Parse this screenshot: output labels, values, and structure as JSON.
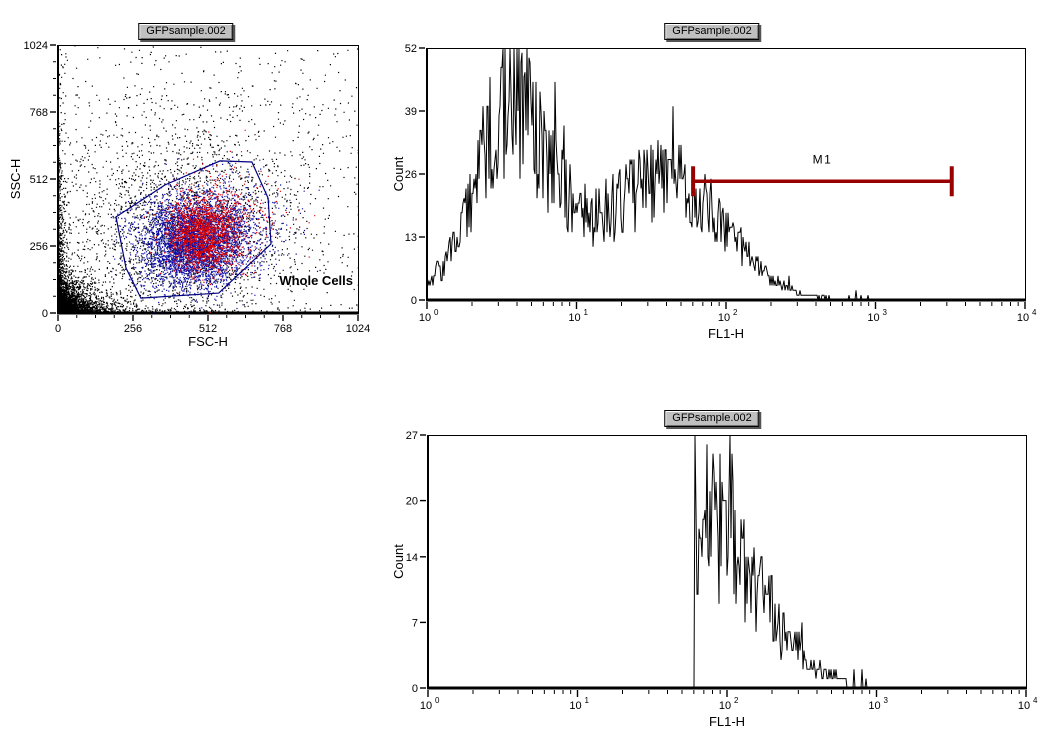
{
  "app": {
    "background": "#FFFFFF"
  },
  "titles": {
    "scatter": "GFPsample.002",
    "hist_total": "GFPsample.002",
    "hist_gated": "GFPsample.002"
  },
  "chart_data": [
    {
      "id": "scatter",
      "type": "scatter",
      "title": "GFPsample.002",
      "xlabel": "FSC-H",
      "ylabel": "SSC-H",
      "xlim": [
        0,
        1024
      ],
      "ylim": [
        0,
        1024
      ],
      "xticks": [
        "0",
        "256",
        "512",
        "768",
        "1024"
      ],
      "yticks": [
        "0",
        "256",
        "512",
        "768",
        "1024"
      ],
      "minor_tick_step": 64,
      "grid": false,
      "layout": {
        "svg": [
          0,
          0,
          384,
          352
        ],
        "plot": [
          58,
          45,
          300,
          268
        ]
      },
      "seed": 1234,
      "point_color_default": "#000000",
      "gate": {
        "label": "Whole Cells",
        "color": "#000080",
        "label_color": "#0000A0",
        "label_anchor": [
          1007,
          126
        ],
        "vertices": [
          [
            198,
            367
          ],
          [
            365,
            489
          ],
          [
            553,
            581
          ],
          [
            662,
            577
          ],
          [
            717,
            439
          ],
          [
            727,
            264
          ],
          [
            549,
            76
          ],
          [
            283,
            57
          ],
          [
            232,
            172
          ]
        ]
      },
      "populations": [
        {
          "name": "debris-corner",
          "kind": "exp_corner",
          "n": 2600,
          "mean_x": 42,
          "mean_y": 42,
          "color": "#000000"
        },
        {
          "name": "debris-left-edge",
          "kind": "exp_corner",
          "n": 550,
          "mean_x": 9,
          "mean_y": 260,
          "color": "#000000"
        },
        {
          "name": "debris-bottom-edge",
          "kind": "exp_corner",
          "n": 380,
          "mean_x": 230,
          "mean_y": 13,
          "color": "#000000"
        },
        {
          "name": "background-cloud",
          "kind": "gauss",
          "n": 2100,
          "cx": 430,
          "cy": 330,
          "sx": 215,
          "sy": 200,
          "color": "#000000"
        },
        {
          "name": "sparse-field",
          "kind": "uniform",
          "n": 600,
          "color": "#000000"
        },
        {
          "name": "whole-cells-blue",
          "kind": "gauss",
          "n": 3600,
          "cx": 455,
          "cy": 265,
          "sx": 88,
          "sy": 84,
          "color": "#0F0FA8"
        },
        {
          "name": "blue-halo",
          "kind": "gauss",
          "n": 900,
          "cx": 540,
          "cy": 330,
          "sx": 118,
          "sy": 102,
          "color": "#0F0FA8"
        },
        {
          "name": "gfp-positive-red",
          "kind": "gauss",
          "n": 1500,
          "cx": 495,
          "cy": 300,
          "sx": 62,
          "sy": 72,
          "color": "#E00000"
        },
        {
          "name": "red-halo",
          "kind": "gauss",
          "n": 300,
          "cx": 575,
          "cy": 380,
          "sx": 105,
          "sy": 95,
          "color": "#E00000"
        }
      ]
    },
    {
      "id": "hist_total",
      "type": "histogram",
      "title": "GFPsample.002",
      "xlabel": "FL1-H",
      "ylabel": "Count",
      "x_log_decades": [
        0,
        4
      ],
      "x_tick_base": "10",
      "x_tick_exponents": [
        "0",
        "1",
        "2",
        "3",
        "4"
      ],
      "ylim": [
        0,
        52
      ],
      "yticks": [
        "0",
        "13",
        "26",
        "39",
        "52"
      ],
      "grid": false,
      "layout": {
        "svg": [
          390,
          0,
          664,
          352
        ],
        "plot": [
          37,
          48,
          598,
          252
        ]
      },
      "seed": 777,
      "trace_color": "#000000",
      "envelope": [
        {
          "center": 0.55,
          "sd": 0.23,
          "amp": 33
        },
        {
          "center": 1.15,
          "sd": 0.55,
          "amp": 13
        },
        {
          "center": 1.7,
          "sd": 0.33,
          "amp": 16
        }
      ],
      "noise": {
        "min": 0.62,
        "max": 1.38,
        "spike_p": 0.06,
        "spike_gain": 1.45
      },
      "cutoff": 2.78,
      "blips": [
        [
          2.82,
          1
        ],
        [
          2.87,
          2
        ],
        [
          2.9,
          1
        ],
        [
          2.95,
          1
        ]
      ],
      "marker": {
        "label": "M1",
        "x1_log": 1.78,
        "x2_log": 3.51,
        "y_count": 24.5,
        "color": "#990000"
      }
    },
    {
      "id": "hist_gated",
      "type": "histogram",
      "title": "GFPsample.002",
      "xlabel": "FL1-H",
      "ylabel": "Count",
      "x_log_decades": [
        0,
        4
      ],
      "x_tick_base": "10",
      "x_tick_exponents": [
        "0",
        "1",
        "2",
        "3",
        "4"
      ],
      "ylim": [
        0,
        27
      ],
      "yticks": [
        "0",
        "7",
        "14",
        "20",
        "27"
      ],
      "grid": false,
      "layout": {
        "svg": [
          390,
          393,
          664,
          350
        ],
        "plot": [
          38,
          42,
          598,
          253
        ]
      },
      "seed": 99,
      "trace_color": "#000000",
      "envelope": [
        {
          "center": 1.78,
          "sd": 0.4,
          "amp": 19
        }
      ],
      "noise": {
        "min": 0.5,
        "max": 1.45,
        "spike_p": 0.05,
        "spike_gain": 1.35
      },
      "gate_start": 1.78,
      "first_spike": 27,
      "cutoff": 2.8,
      "blips": [
        [
          2.85,
          2
        ],
        [
          2.9,
          2
        ],
        [
          2.93,
          1
        ]
      ]
    }
  ]
}
